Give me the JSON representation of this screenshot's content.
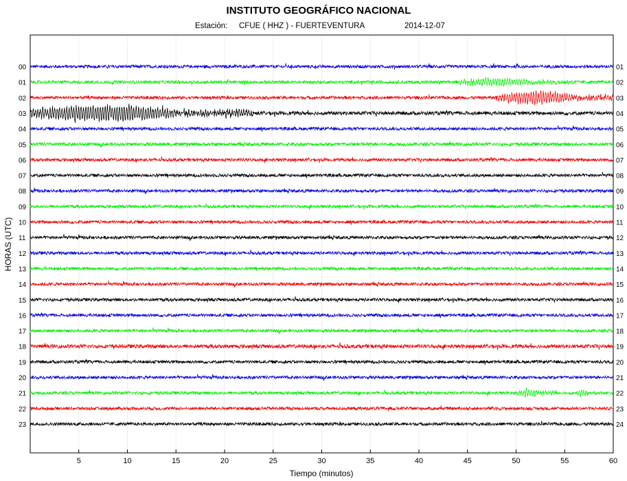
{
  "chart_data": {
    "type": "line",
    "title": "INSTITUTO GEOGRÁFICO NACIONAL",
    "subtitle": {
      "station_label": "Estación:",
      "station": "CFUE ( HHZ ) - FUERTEVENTURA",
      "date": "2014-12-07"
    },
    "xlabel": "Tiempo (minutos)",
    "ylabel": "HORAS (UTC)",
    "xlim": [
      0,
      60
    ],
    "x_ticks": [
      5,
      10,
      15,
      20,
      25,
      30,
      35,
      40,
      45,
      50,
      55,
      60
    ],
    "grid": "vertical dotted lines at every 5 minutes",
    "left_hour_labels": [
      "00",
      "01",
      "02",
      "03",
      "04",
      "05",
      "06",
      "07",
      "08",
      "09",
      "10",
      "11",
      "12",
      "13",
      "14",
      "15",
      "16",
      "17",
      "18",
      "19",
      "20",
      "21",
      "22",
      "23"
    ],
    "right_hour_labels": [
      "01",
      "02",
      "03",
      "04",
      "05",
      "06",
      "07",
      "08",
      "09",
      "10",
      "11",
      "12",
      "13",
      "14",
      "15",
      "16",
      "17",
      "18",
      "19",
      "20",
      "21",
      "22",
      "23",
      "24"
    ],
    "trace_colors": [
      "#0000dd",
      "#00ee00",
      "#ee0000",
      "#000000"
    ],
    "series": [
      {
        "hour": "00",
        "color": "#0000dd",
        "noise_amplitude": 0.25,
        "events": []
      },
      {
        "hour": "01",
        "color": "#00ee00",
        "noise_amplitude": 0.25,
        "events": [
          {
            "start_min": 44,
            "end_min": 56,
            "amplitude": 0.5
          }
        ]
      },
      {
        "hour": "02",
        "color": "#ee0000",
        "noise_amplitude": 0.25,
        "events": [
          {
            "start_min": 48,
            "end_min": 60,
            "amplitude": 0.85
          }
        ]
      },
      {
        "hour": "03",
        "color": "#000000",
        "noise_amplitude": 0.3,
        "events": [
          {
            "start_min": 0,
            "end_min": 23,
            "amplitude": 1.1
          }
        ]
      },
      {
        "hour": "04",
        "color": "#0000dd",
        "noise_amplitude": 0.25,
        "events": []
      },
      {
        "hour": "05",
        "color": "#00ee00",
        "noise_amplitude": 0.27,
        "events": []
      },
      {
        "hour": "06",
        "color": "#ee0000",
        "noise_amplitude": 0.25,
        "events": []
      },
      {
        "hour": "07",
        "color": "#000000",
        "noise_amplitude": 0.25,
        "events": []
      },
      {
        "hour": "08",
        "color": "#0000dd",
        "noise_amplitude": 0.25,
        "events": []
      },
      {
        "hour": "09",
        "color": "#00ee00",
        "noise_amplitude": 0.25,
        "events": []
      },
      {
        "hour": "10",
        "color": "#ee0000",
        "noise_amplitude": 0.25,
        "events": []
      },
      {
        "hour": "11",
        "color": "#000000",
        "noise_amplitude": 0.25,
        "events": []
      },
      {
        "hour": "12",
        "color": "#0000dd",
        "noise_amplitude": 0.25,
        "events": []
      },
      {
        "hour": "13",
        "color": "#00ee00",
        "noise_amplitude": 0.25,
        "events": []
      },
      {
        "hour": "14",
        "color": "#ee0000",
        "noise_amplitude": 0.25,
        "events": []
      },
      {
        "hour": "15",
        "color": "#000000",
        "noise_amplitude": 0.25,
        "events": []
      },
      {
        "hour": "16",
        "color": "#0000dd",
        "noise_amplitude": 0.25,
        "events": []
      },
      {
        "hour": "17",
        "color": "#00ee00",
        "noise_amplitude": 0.25,
        "events": []
      },
      {
        "hour": "18",
        "color": "#ee0000",
        "noise_amplitude": 0.3,
        "events": []
      },
      {
        "hour": "19",
        "color": "#000000",
        "noise_amplitude": 0.25,
        "events": []
      },
      {
        "hour": "20",
        "color": "#0000dd",
        "noise_amplitude": 0.25,
        "events": []
      },
      {
        "hour": "21",
        "color": "#00ee00",
        "noise_amplitude": 0.25,
        "events": [
          {
            "start_min": 50,
            "end_min": 54,
            "amplitude": 0.5
          },
          {
            "start_min": 56,
            "end_min": 58,
            "amplitude": 0.4
          }
        ]
      },
      {
        "hour": "22",
        "color": "#ee0000",
        "noise_amplitude": 0.25,
        "events": []
      },
      {
        "hour": "23",
        "color": "#000000",
        "noise_amplitude": 0.25,
        "events": []
      }
    ]
  }
}
